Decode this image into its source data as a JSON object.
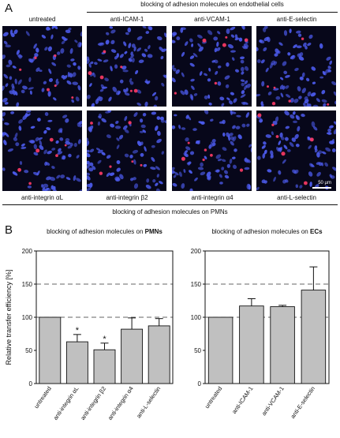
{
  "figure": {
    "panel_a_letter": "A",
    "panel_b_letter": "B",
    "top_header": "blocking of adhesion molecules on endothelial cells",
    "bottom_header": "blocking of adhesion molecules on PMNs",
    "row1_labels": [
      "untreated",
      "anti-ICAM-1",
      "anti-VCAM-1",
      "anti-E-selectin"
    ],
    "row2_labels": [
      "anti-integrin αL",
      "anti-integrin β2",
      "anti-integrin α4",
      "anti-L-selectin"
    ],
    "scale_bar_label": "50 µm",
    "colors": {
      "nuclei": "#4d5cf0",
      "cells": "#ff3b66",
      "background": "#07071a",
      "bar_fill": "#c0c0c0"
    }
  },
  "chart_data": [
    {
      "type": "bar",
      "title_prefix": "blocking of adhesion molecules on ",
      "title_bold": "PMNs",
      "ylabel": "Relative transfer efficiency [%]",
      "xlabel": "",
      "ylim": [
        0,
        200
      ],
      "yticks": [
        0,
        50,
        100,
        150,
        200
      ],
      "reference_lines": [
        100,
        150
      ],
      "categories": [
        "untreated",
        "anti-integrin αL",
        "anti-integrin β2",
        "anti-integrin α4",
        "anti-L-selectin"
      ],
      "values": [
        100,
        63,
        51,
        82,
        87
      ],
      "errors": [
        0,
        11,
        10,
        17,
        11
      ],
      "significance": [
        "",
        "*",
        "*",
        "",
        ""
      ]
    },
    {
      "type": "bar",
      "title_prefix": "blocking of adhesion molecules on ",
      "title_bold": "ECs",
      "ylabel": "",
      "xlabel": "",
      "ylim": [
        0,
        200
      ],
      "yticks": [
        0,
        50,
        100,
        150,
        200
      ],
      "reference_lines": [
        100,
        150
      ],
      "categories": [
        "untreated",
        "anti-ICAM-1",
        "anti-VCAM-1",
        "anti-E-selectin"
      ],
      "values": [
        100,
        117,
        116,
        141
      ],
      "errors": [
        0,
        11,
        2,
        35
      ],
      "significance": [
        "",
        "",
        "",
        ""
      ]
    }
  ]
}
